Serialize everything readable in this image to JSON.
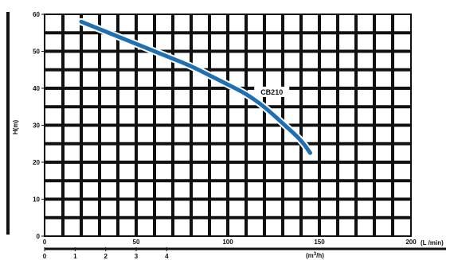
{
  "chart_data": {
    "type": "line",
    "title": "",
    "ylabel": "H(m)",
    "xlabel": "(L /min)",
    "x2label_base": "(m",
    "x2label_sup": "3",
    "x2label_tail": "/h)",
    "xlim": [
      0,
      200
    ],
    "ylim": [
      0,
      60
    ],
    "x2lim": [
      0,
      12
    ],
    "xticks": [
      "0",
      "50",
      "100",
      "150",
      "200"
    ],
    "yticks": [
      "0",
      "10",
      "20",
      "30",
      "40",
      "50",
      "60"
    ],
    "x2ticks": [
      "0",
      "1",
      "2",
      "3",
      "4"
    ],
    "grid": true,
    "series": [
      {
        "name": "CB210",
        "color": "#1f6fb3",
        "x": [
          20,
          30,
          40,
          50,
          60,
          70,
          80,
          90,
          100,
          110,
          120,
          130,
          140,
          145
        ],
        "y": [
          58,
          56,
          54,
          52,
          50,
          48,
          46,
          43.5,
          41,
          38.5,
          35,
          30.5,
          26,
          22.5
        ]
      }
    ]
  }
}
